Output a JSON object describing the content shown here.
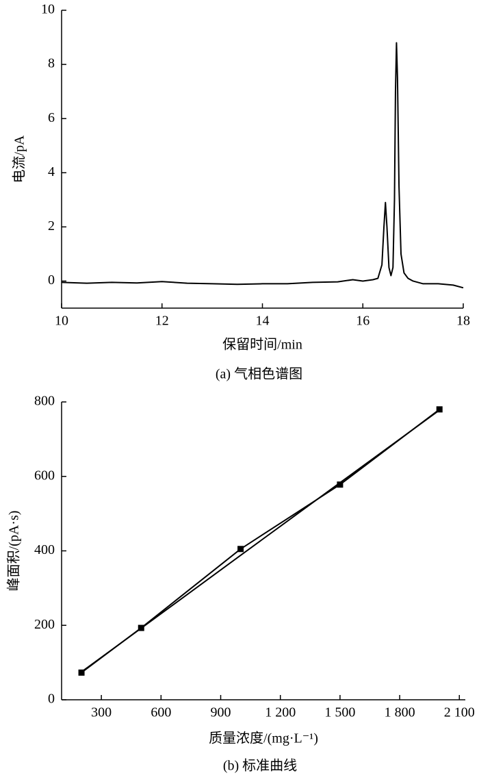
{
  "chart_data": [
    {
      "type": "line",
      "x_label": "保留时间/min",
      "y_label": "电流/pA",
      "caption": "(a) 气相色谱图",
      "x": [
        10,
        10.5,
        11,
        11.5,
        12,
        12.5,
        13,
        13.5,
        14,
        14.5,
        15,
        15.5,
        15.8,
        16,
        16.2,
        16.3,
        16.38,
        16.42,
        16.45,
        16.48,
        16.52,
        16.56,
        16.6,
        16.63,
        16.65,
        16.67,
        16.69,
        16.72,
        16.76,
        16.82,
        16.9,
        17.0,
        17.2,
        17.5,
        17.8,
        18
      ],
      "series": [
        {
          "color": "#000000",
          "values": [
            -0.05,
            -0.08,
            -0.05,
            -0.07,
            -0.02,
            -0.08,
            -0.1,
            -0.12,
            -0.1,
            -0.1,
            -0.05,
            -0.03,
            0.05,
            0.0,
            0.05,
            0.1,
            0.6,
            2.0,
            2.9,
            2.0,
            0.5,
            0.2,
            0.5,
            3.0,
            7.0,
            8.8,
            7.5,
            3.5,
            1.0,
            0.3,
            0.1,
            0.0,
            -0.1,
            -0.1,
            -0.15,
            -0.25
          ]
        }
      ],
      "xlim": [
        10,
        18
      ],
      "xticks": [
        10,
        12,
        14,
        16,
        18
      ],
      "ylim": [
        -1,
        10
      ],
      "yticks": [
        0,
        2,
        4,
        6,
        8,
        10
      ]
    },
    {
      "type": "line",
      "x_label": "质量浓度/(mg·L⁻¹)",
      "y_label": "峰面积/(pA·s)",
      "caption": "(b) 标准曲线",
      "x": [
        200,
        500,
        1000,
        1500,
        2000
      ],
      "series": [
        {
          "color": "#000000",
          "marker": "square",
          "values": [
            73,
            193,
            405,
            578,
            780
          ]
        },
        {
          "color": "#000000",
          "values": [
            75,
            192,
            388,
            583,
            778
          ]
        }
      ],
      "xlim": [
        100,
        2130
      ],
      "xticks": [
        300,
        600,
        900,
        {
          "value": 1200,
          "label": "1 200"
        },
        {
          "value": 1500,
          "label": "1 500"
        },
        {
          "value": 1800,
          "label": "1 800"
        },
        {
          "value": 2100,
          "label": "2 100"
        }
      ],
      "ylim": [
        0,
        800
      ],
      "yticks": [
        0,
        200,
        400,
        600,
        800
      ]
    }
  ]
}
